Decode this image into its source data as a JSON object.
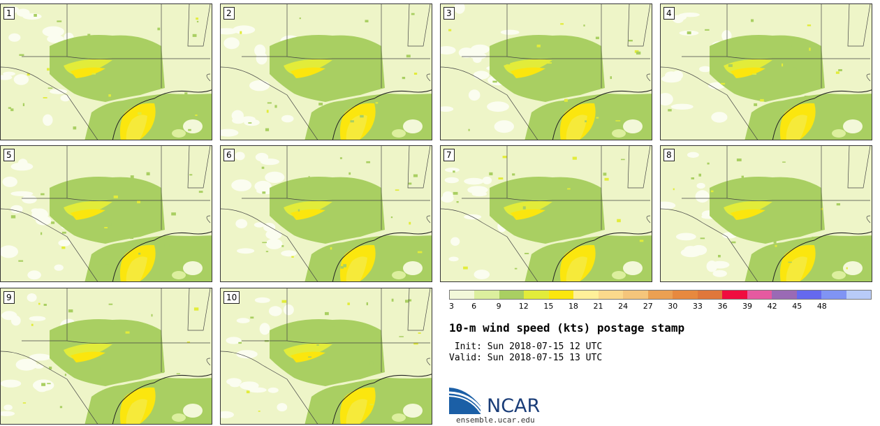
{
  "title": "10-m wind speed (kts) postage stamp",
  "init_text": " Init: Sun 2018-07-15 12 UTC",
  "valid_text": "Valid: Sun 2018-07-15 13 UTC",
  "logo_text": "NCAR",
  "url": "ensemble.ucar.edu",
  "panels": [
    "1",
    "2",
    "3",
    "4",
    "5",
    "6",
    "7",
    "8",
    "9",
    "10"
  ],
  "colorbar": {
    "ticks": [
      "3",
      "6",
      "9",
      "12",
      "15",
      "18",
      "21",
      "24",
      "27",
      "30",
      "33",
      "36",
      "39",
      "42",
      "45",
      "48"
    ],
    "colors": [
      "#f3f8d9",
      "#dcef9e",
      "#a9cf62",
      "#e2ec3a",
      "#fbe60e",
      "#fff099",
      "#fbd98c",
      "#f5c57b",
      "#eba052",
      "#e7893f",
      "#df773b",
      "#f00c3f",
      "#e55aa0",
      "#9a6ab5",
      "#6569ee",
      "#8094f4",
      "#b8cbf8"
    ]
  }
}
